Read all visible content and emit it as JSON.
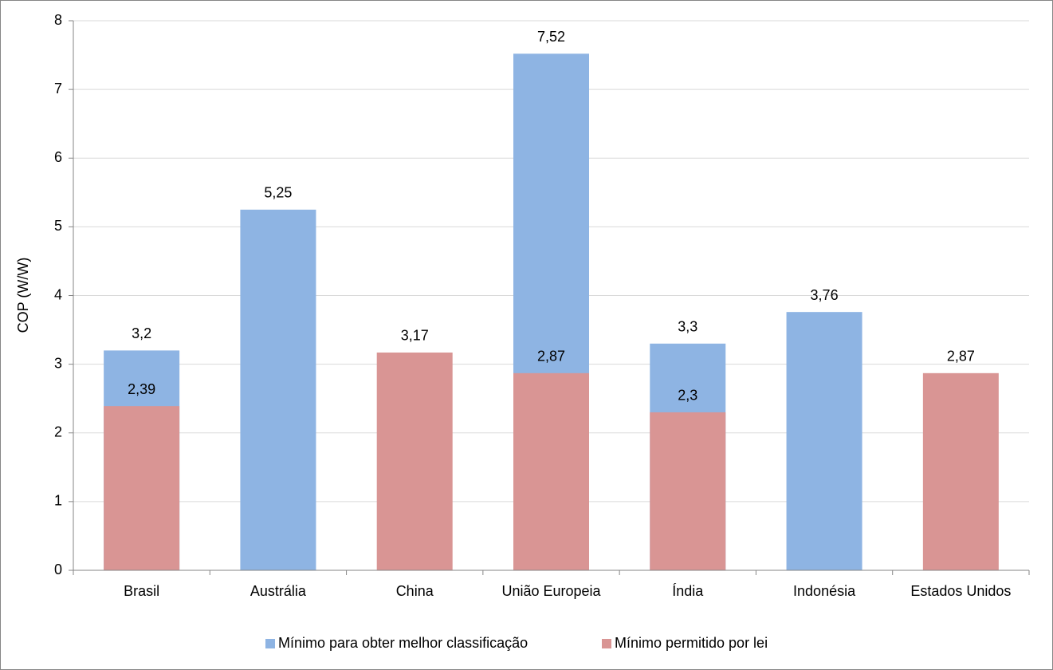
{
  "chart_data": {
    "type": "bar",
    "overlap": true,
    "y_label": "COP (W/W)",
    "categories": [
      "Brasil",
      "Austrália",
      "China",
      "União Europeia",
      "Índia",
      "Indonésia",
      "Estados Unidos"
    ],
    "series": [
      {
        "name": "Mínimo para obter melhor classificação",
        "color": "#8eb4e3",
        "values": [
          3.2,
          5.25,
          null,
          7.52,
          3.3,
          3.76,
          null
        ],
        "value_labels": [
          "3,2",
          "5,25",
          null,
          "7,52",
          "3,3",
          "3,76",
          null
        ]
      },
      {
        "name": "Mínimo permitido por lei",
        "color": "#d99594",
        "values": [
          2.39,
          null,
          3.17,
          2.87,
          2.3,
          null,
          2.87
        ],
        "value_labels": [
          "2,39",
          null,
          "3,17",
          "2,87",
          "2,3",
          null,
          "2,87"
        ]
      }
    ],
    "ylim": [
      0,
      8
    ],
    "yticks": [
      0,
      1,
      2,
      3,
      4,
      5,
      6,
      7,
      8
    ],
    "grid": true,
    "legend": "bottom"
  }
}
